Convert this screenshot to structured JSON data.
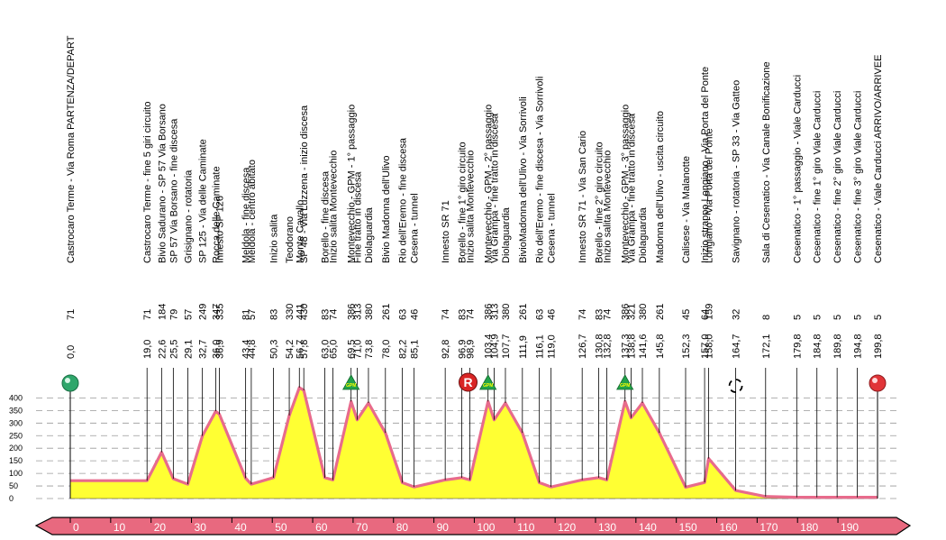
{
  "colors": {
    "profile_fill": "#ffff33",
    "profile_line": "#e86b8c",
    "start_green": "#2fa66b",
    "finish_red": "#e13438",
    "axis_band": "#e8697f",
    "grid": "#999999"
  },
  "start": {
    "label": "Castrocaro Terme - Via Roma PARTENZA/DEPART",
    "km": "0,0",
    "alt": "71"
  },
  "finish": {
    "label_prefix": "Cesenatico - Viale Carducci ARRIVO/ARRIVEE",
    "km": "199,8",
    "alt": "5"
  },
  "gpm_label": "GPM",
  "sprint_label": "R",
  "chart_data": {
    "type": "area",
    "xlabel": "",
    "ylabel": "",
    "xlim": [
      0,
      199.8
    ],
    "ylim": [
      0,
      450
    ],
    "x_ticks": [
      0,
      10,
      20,
      30,
      40,
      50,
      60,
      70,
      80,
      90,
      100,
      110,
      120,
      130,
      140,
      150,
      160,
      170,
      180,
      190
    ],
    "y_ticks": [
      0,
      50,
      100,
      150,
      200,
      250,
      300,
      350,
      400
    ],
    "grid": true,
    "profile": {
      "x": [
        0,
        19.0,
        22.6,
        25.5,
        29.1,
        32.7,
        36.0,
        36.9,
        43.4,
        44.8,
        50.3,
        54.2,
        56.7,
        57.8,
        63.0,
        65.0,
        69.5,
        71.0,
        73.8,
        78.0,
        82.2,
        85.1,
        92.8,
        96.9,
        98.9,
        103.4,
        104.9,
        107.7,
        111.9,
        116.1,
        119.0,
        126.7,
        130.8,
        132.8,
        137.3,
        138.8,
        141.6,
        145.8,
        152.3,
        157.0,
        158.0,
        164.7,
        172.1,
        179.8,
        184.8,
        189.8,
        194.8,
        199.8
      ],
      "y": [
        71,
        71,
        184,
        79,
        57,
        249,
        347,
        335,
        81,
        57,
        83,
        330,
        441,
        430,
        83,
        74,
        386,
        313,
        380,
        261,
        63,
        46,
        74,
        83,
        74,
        386,
        313,
        380,
        261,
        63,
        46,
        74,
        83,
        74,
        386,
        321,
        380,
        261,
        45,
        64,
        159,
        32,
        8,
        5,
        5,
        5,
        5,
        5
      ]
    },
    "points": [
      {
        "km": "19,0",
        "alt": "71",
        "label": "Castrocaro Terme - fine 5 giri circuito"
      },
      {
        "km": "22,6",
        "alt": "184",
        "label": "Bivio Sadurano - SP 57 Via Borsano"
      },
      {
        "km": "25,5",
        "alt": "79",
        "label": "SP 57 Via Borsano - fine discesa"
      },
      {
        "km": "29,1",
        "alt": "57",
        "label": "Grisignano - rotatoria"
      },
      {
        "km": "32,7",
        "alt": "249",
        "label": "SP 125 - Via delle Caminate"
      },
      {
        "km": "36,0",
        "alt": "347",
        "label": "Rocca delle Caminate"
      },
      {
        "km": "36,9",
        "alt": "335",
        "label": "Innesto SP 126"
      },
      {
        "km": "43,4",
        "alt": "81",
        "label": "Meldola - fine discesa"
      },
      {
        "km": "44,8",
        "alt": "57",
        "label": "Meldola - centro abitato"
      },
      {
        "km": "50,3",
        "alt": "83",
        "label": "Inizio salita"
      },
      {
        "km": "54,2",
        "alt": "330",
        "label": "Teodorano"
      },
      {
        "km": "56,7",
        "alt": "441",
        "label": "Monte Cavallo"
      },
      {
        "km": "57,8",
        "alt": "430",
        "label": "SP 48 - Via Luzzena - inizio discesa"
      },
      {
        "km": "63,0",
        "alt": "83",
        "label": "Borello - fine discesa"
      },
      {
        "km": "65,0",
        "alt": "74",
        "label": "Inizio salita Montevecchio"
      },
      {
        "km": "69,5",
        "alt": "386",
        "label": "Montevecchio - GPM - 1° passaggio"
      },
      {
        "km": "71,0",
        "alt": "313",
        "label": "Fine tratto in discesa"
      },
      {
        "km": "73,8",
        "alt": "380",
        "label": "Diolaguardia"
      },
      {
        "km": "78,0",
        "alt": "261",
        "label": "Bivio Madonna dell'Ulivo"
      },
      {
        "km": "82,2",
        "alt": "63",
        "label": "Rio dell'Eremo - fine discesa"
      },
      {
        "km": "85,1",
        "alt": "46",
        "label": "Cesena - tunnel"
      },
      {
        "km": "92,8",
        "alt": "74",
        "label": "Innesto SR 71"
      },
      {
        "km": "96,9",
        "alt": "83",
        "label": "Borello - fine 1° giro circuito"
      },
      {
        "km": "98,9",
        "alt": "74",
        "label": "Inizio salita Montevecchio"
      },
      {
        "km": "103,4",
        "alt": "386",
        "label": "Montevecchio - GPM - 2° passaggio"
      },
      {
        "km": "104,9",
        "alt": "313",
        "label": "Via Grampa - fine tratto in discesa"
      },
      {
        "km": "107,7",
        "alt": "380",
        "label": "Diolaguardia"
      },
      {
        "km": "111,9",
        "alt": "261",
        "label": "BivioMadonna dell'Ulivo - Via Sorrivoli"
      },
      {
        "km": "116,1",
        "alt": "63",
        "label": "Rio dell'Eremo - fine discesa - Via Sorrivoli"
      },
      {
        "km": "119,0",
        "alt": "46",
        "label": "Cesena - tunnel"
      },
      {
        "km": "126,7",
        "alt": "74",
        "label": "Innesto SR 71 - Via San Cario"
      },
      {
        "km": "130,8",
        "alt": "83",
        "label": "Borello - fine 2° giro circuito"
      },
      {
        "km": "132,8",
        "alt": "74",
        "label": "Inizio salita Montevecchio"
      },
      {
        "km": "137,3",
        "alt": "386",
        "label": "Montevecchio - GPM - 3° passaggio"
      },
      {
        "km": "138,8",
        "alt": "321",
        "label": "Via Grampa - fine tratto in discesa"
      },
      {
        "km": "141,6",
        "alt": "380",
        "label": "Diolaguardia"
      },
      {
        "km": "145,8",
        "alt": "261",
        "label": "Madonna dell'Ulivo - uscita circuito"
      },
      {
        "km": "152,3",
        "alt": "45",
        "label": "Calisese - Via Malanotte"
      },
      {
        "km": "157,0",
        "alt": "64",
        "label": "Inizio strappo Longiano - Via Porta del Ponte"
      },
      {
        "km": "158,0",
        "alt": "159",
        "label": "Longiano - Via Porta del Ponte"
      },
      {
        "km": "164,7",
        "alt": "32",
        "label": "Savignano - rotatoria - SP 33 - Via Gatteo"
      },
      {
        "km": "172,1",
        "alt": "8",
        "label": "Sala di Cesenatico - Via Canale Bonificazione"
      },
      {
        "km": "179,8",
        "alt": "5",
        "label": "Cesenatico - 1° passaggio - Viale Carducci"
      },
      {
        "km": "184,8",
        "alt": "5",
        "label": "Cesenatico - fine 1° giro Viale Carducci"
      },
      {
        "km": "189,8",
        "alt": "5",
        "label": "Cesenatico - fine 2° giro Viale Carducci"
      },
      {
        "km": "194,8",
        "alt": "5",
        "label": "Cesenatico - fine 3° giro Viale Carducci"
      }
    ],
    "gpm_km": [
      69.5,
      103.4,
      137.3
    ],
    "sprint_km": [
      98.9
    ],
    "roundabout_km": [
      164.7
    ]
  }
}
